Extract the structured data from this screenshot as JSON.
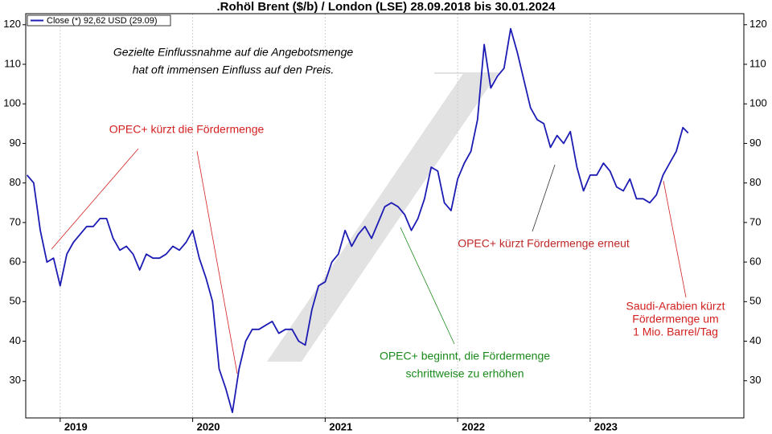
{
  "chart_data": {
    "type": "line",
    "title": ".Rohöl Brent ($/b) / London (LSE) 28.09.2018 bis 30.01.2024",
    "legend_corner": "top-left",
    "grid": true,
    "xlim": [
      2018.74,
      2024.16
    ],
    "xticks": [
      2019,
      2020,
      2021,
      2022,
      2023
    ],
    "ylim": [
      20.6,
      122.8
    ],
    "yticks": [
      30,
      40,
      50,
      60,
      70,
      80,
      90,
      100,
      110,
      120
    ],
    "y2lim": [
      20.6,
      122.8
    ],
    "y2ticks": [
      30,
      40,
      50,
      60,
      70,
      80,
      90,
      100,
      110,
      120
    ],
    "x": [
      2018.75,
      2018.8,
      2018.85,
      2018.9,
      2018.95,
      2019,
      2019.05,
      2019.1,
      2019.15,
      2019.2,
      2019.25,
      2019.3,
      2019.35,
      2019.4,
      2019.45,
      2019.5,
      2019.55,
      2019.6,
      2019.65,
      2019.7,
      2019.75,
      2019.8,
      2019.85,
      2019.9,
      2019.95,
      2020,
      2020.05,
      2020.1,
      2020.15,
      2020.2,
      2020.25,
      2020.3,
      2020.35,
      2020.4,
      2020.45,
      2020.5,
      2020.55,
      2020.6,
      2020.65,
      2020.7,
      2020.75,
      2020.8,
      2020.85,
      2020.9,
      2020.95,
      2021,
      2021.05,
      2021.1,
      2021.15,
      2021.2,
      2021.25,
      2021.3,
      2021.35,
      2021.4,
      2021.45,
      2021.5,
      2021.55,
      2021.6,
      2021.65,
      2021.7,
      2021.75,
      2021.8,
      2021.85,
      2021.9,
      2021.95,
      2022,
      2022.05,
      2022.1,
      2022.15,
      2022.2,
      2022.25,
      2022.3,
      2022.35,
      2022.4,
      2022.45,
      2022.5,
      2022.55,
      2022.6,
      2022.65,
      2022.7,
      2022.75,
      2022.8,
      2022.85,
      2022.9,
      2022.95,
      2023,
      2023.05,
      2023.1,
      2023.15,
      2023.2,
      2023.25,
      2023.3,
      2023.35,
      2023.4,
      2023.45,
      2023.5,
      2023.55,
      2023.6,
      2023.65,
      2023.7,
      2023.74
    ],
    "series": [
      {
        "name": "Close (*) 92,62 USD (29.09)",
        "color": "#1c1cb4",
        "values": [
          82,
          80,
          68,
          60,
          61,
          54,
          62,
          65,
          67,
          69,
          69,
          71,
          71,
          66,
          63,
          64,
          62,
          58,
          62,
          61,
          61,
          62,
          64,
          63,
          65,
          68,
          61,
          56,
          50,
          33,
          28,
          22,
          33,
          40,
          43,
          43,
          44,
          45,
          42,
          43,
          43,
          40,
          39,
          48,
          54,
          55,
          60,
          62,
          68,
          64,
          67,
          69,
          66,
          70,
          74,
          75,
          74,
          72,
          68,
          71,
          76,
          84,
          83,
          75,
          73,
          81,
          85,
          88,
          96,
          115,
          104,
          107,
          109,
          119,
          113,
          106,
          99,
          96,
          95,
          89,
          92,
          90,
          93,
          84,
          78,
          82,
          82,
          85,
          83,
          79,
          78,
          81,
          76,
          76,
          75,
          77,
          82,
          85,
          88,
          94,
          92.62
        ]
      }
    ],
    "annotations": [
      {
        "lines": [
          "Gezielte Einflussnahme auf die Angebotsmenge",
          "hat oft immensen Einfluss auf den Preis."
        ],
        "color": "#000000"
      },
      {
        "lines": [
          "OPEC+ kürzt die Fördermenge"
        ],
        "color": "#d42020"
      },
      {
        "lines": [
          "OPEC+ beginnt, die Fördermenge",
          "schrittweise zu erhöhen"
        ],
        "color": "#1a8a1a"
      },
      {
        "lines": [
          "OPEC+ kürzt Fördermenge erneut"
        ],
        "color": "#c02828"
      },
      {
        "lines": [
          "Saudi-Arabien kürzt",
          "Fördermenge um",
          "1 Mio. Barrel/Tag"
        ],
        "color": "#d42020"
      }
    ]
  }
}
